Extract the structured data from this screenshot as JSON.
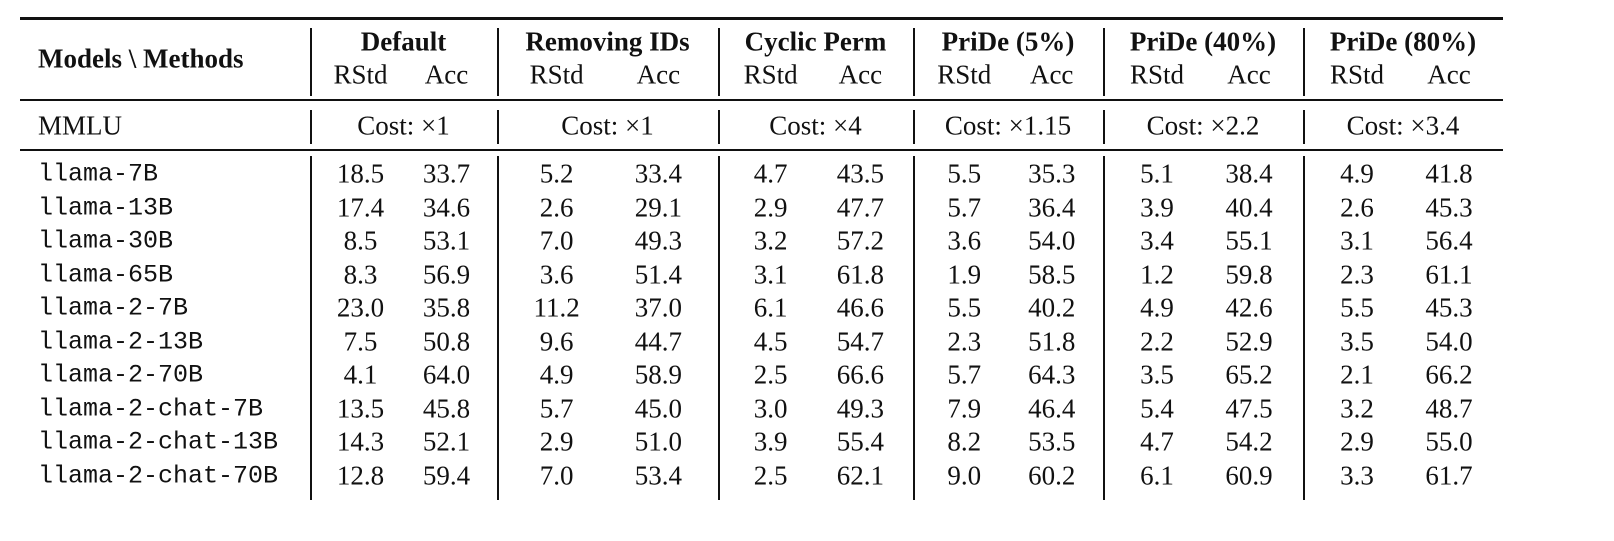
{
  "table": {
    "header": {
      "corner": "Models \\ Methods",
      "groups": [
        {
          "name": "Default",
          "sub": [
            "RStd",
            "Acc"
          ]
        },
        {
          "name": "Removing IDs",
          "sub": [
            "RStd",
            "Acc"
          ]
        },
        {
          "name": "Cyclic Perm",
          "sub": [
            "RStd",
            "Acc"
          ]
        },
        {
          "name": "PriDe (5%)",
          "sub": [
            "RStd",
            "Acc"
          ]
        },
        {
          "name": "PriDe (40%)",
          "sub": [
            "RStd",
            "Acc"
          ]
        },
        {
          "name": "PriDe (80%)",
          "sub": [
            "RStd",
            "Acc"
          ]
        }
      ]
    },
    "cost_row": {
      "label": "MMLU",
      "costs": [
        "Cost: ×1",
        "Cost: ×1",
        "Cost: ×4",
        "Cost: ×1.15",
        "Cost: ×2.2",
        "Cost: ×3.4"
      ]
    },
    "rows": [
      {
        "model": "llama-7B",
        "values": [
          "18.5",
          "33.7",
          "5.2",
          "33.4",
          "4.7",
          "43.5",
          "5.5",
          "35.3",
          "5.1",
          "38.4",
          "4.9",
          "41.8"
        ]
      },
      {
        "model": "llama-13B",
        "values": [
          "17.4",
          "34.6",
          "2.6",
          "29.1",
          "2.9",
          "47.7",
          "5.7",
          "36.4",
          "3.9",
          "40.4",
          "2.6",
          "45.3"
        ]
      },
      {
        "model": "llama-30B",
        "values": [
          "8.5",
          "53.1",
          "7.0",
          "49.3",
          "3.2",
          "57.2",
          "3.6",
          "54.0",
          "3.4",
          "55.1",
          "3.1",
          "56.4"
        ]
      },
      {
        "model": "llama-65B",
        "values": [
          "8.3",
          "56.9",
          "3.6",
          "51.4",
          "3.1",
          "61.8",
          "1.9",
          "58.5",
          "1.2",
          "59.8",
          "2.3",
          "61.1"
        ]
      },
      {
        "model": "llama-2-7B",
        "values": [
          "23.0",
          "35.8",
          "11.2",
          "37.0",
          "6.1",
          "46.6",
          "5.5",
          "40.2",
          "4.9",
          "42.6",
          "5.5",
          "45.3"
        ]
      },
      {
        "model": "llama-2-13B",
        "values": [
          "7.5",
          "50.8",
          "9.6",
          "44.7",
          "4.5",
          "54.7",
          "2.3",
          "51.8",
          "2.2",
          "52.9",
          "3.5",
          "54.0"
        ]
      },
      {
        "model": "llama-2-70B",
        "values": [
          "4.1",
          "64.0",
          "4.9",
          "58.9",
          "2.5",
          "66.6",
          "5.7",
          "64.3",
          "3.5",
          "65.2",
          "2.1",
          "66.2"
        ]
      },
      {
        "model": "llama-2-chat-7B",
        "values": [
          "13.5",
          "45.8",
          "5.7",
          "45.0",
          "3.0",
          "49.3",
          "7.9",
          "46.4",
          "5.4",
          "47.5",
          "3.2",
          "48.7"
        ]
      },
      {
        "model": "llama-2-chat-13B",
        "values": [
          "14.3",
          "52.1",
          "2.9",
          "51.0",
          "3.9",
          "55.4",
          "8.2",
          "53.5",
          "4.7",
          "54.2",
          "2.9",
          "55.0"
        ]
      },
      {
        "model": "llama-2-chat-70B",
        "values": [
          "12.8",
          "59.4",
          "7.0",
          "53.4",
          "2.5",
          "62.1",
          "9.0",
          "60.2",
          "6.1",
          "60.9",
          "3.3",
          "61.7"
        ]
      }
    ]
  }
}
